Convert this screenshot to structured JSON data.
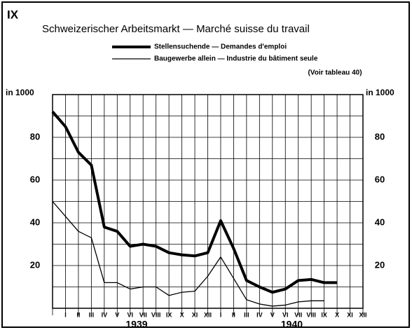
{
  "chart_data": {
    "type": "line",
    "panel_label": "IX",
    "title": "Schweizerischer Arbeitsmarkt — Marché suisse du travail",
    "note": "(Voir tableau 40)",
    "y_unit_label": "in 1000",
    "categories": [
      null,
      "I",
      "II",
      "III",
      "IV",
      "V",
      "VI",
      "VII",
      "VIII",
      "IX",
      "X",
      "XI",
      "XII",
      "I",
      "II",
      "III",
      "IV",
      "V",
      "VI",
      "VII",
      "VIII",
      "IX",
      "X",
      "XI",
      "XII"
    ],
    "year_labels": [
      "1939",
      "1940"
    ],
    "series": [
      {
        "name": "Stellensuchende — Demandes d'emploi",
        "color": "#000000",
        "line_width": 4,
        "values": [
          92,
          85,
          73,
          67,
          38,
          36,
          29,
          30,
          29,
          26,
          25,
          24.5,
          26,
          41,
          28,
          13,
          10,
          7.5,
          9,
          13,
          13.5,
          12,
          12,
          null,
          null
        ]
      },
      {
        "name": "Baugewerbe allein — Industrie du bâtiment seule",
        "color": "#000000",
        "line_width": 1.3,
        "values": [
          50,
          43,
          36,
          33,
          12,
          12,
          9,
          10,
          10,
          6,
          7.5,
          8,
          15,
          24,
          14,
          4,
          2,
          1,
          1.5,
          3,
          3.5,
          3.5,
          null,
          null,
          null
        ]
      }
    ],
    "ylim": [
      0,
      100
    ],
    "yticks": [
      20,
      40,
      60,
      80
    ],
    "minor_yticks": [
      10,
      30,
      50,
      70,
      90
    ],
    "grid": true
  }
}
